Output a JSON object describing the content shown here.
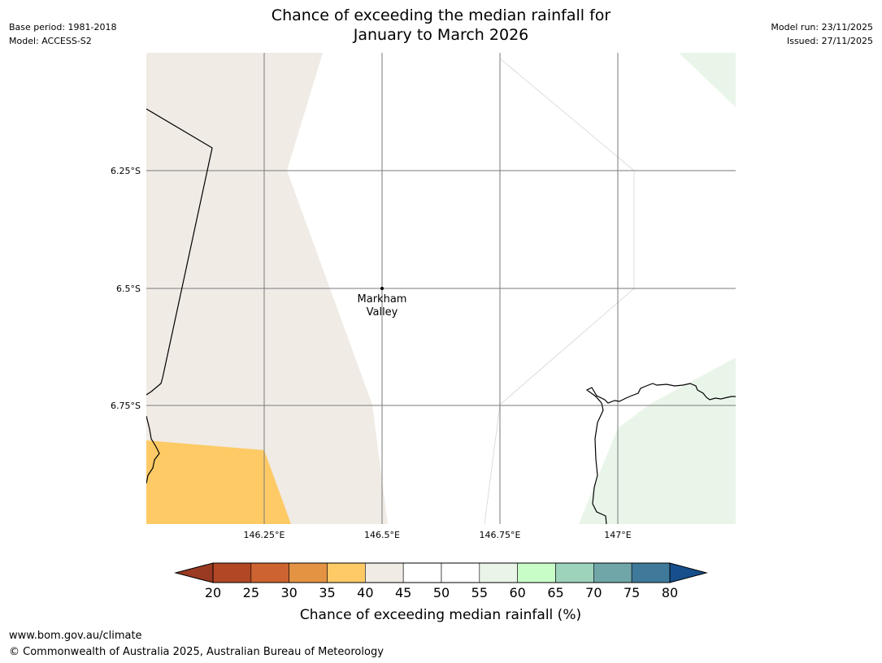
{
  "title_line1": "Chance of exceeding the median rainfall for",
  "title_line2": "January to March 2026",
  "meta_left": {
    "base_period": "Base period: 1981-2018",
    "model": "Model: ACCESS-S2"
  },
  "meta_right": {
    "model_run": "Model run: 23/11/2025",
    "issued": "Issued: 27/11/2025"
  },
  "map": {
    "lat_labels": [
      "6.25°S",
      "6.5°S",
      "6.75°S"
    ],
    "lon_labels": [
      "146.25°E",
      "146.5°E",
      "146.75°E",
      "147°E"
    ],
    "place": {
      "name_line1": "Markham",
      "name_line2": "Valley"
    },
    "colors": {
      "band_40_45": "#f0ebe5",
      "band_35_40": "#fdca65",
      "band_55_60": "#eaf5e9",
      "gridline": "#7a7a7a",
      "coastline": "#000000"
    }
  },
  "colorbar": {
    "label": "Chance of exceeding median rainfall (%)",
    "ticks": [
      "20",
      "25",
      "30",
      "35",
      "40",
      "45",
      "50",
      "55",
      "60",
      "65",
      "70",
      "75",
      "80"
    ],
    "below_color": "#9a3a22",
    "above_color": "#174f8c",
    "bins": [
      {
        "range": "20-25",
        "color": "#b24725"
      },
      {
        "range": "25-30",
        "color": "#cd6330"
      },
      {
        "range": "30-35",
        "color": "#e49343"
      },
      {
        "range": "35-40",
        "color": "#fdca65"
      },
      {
        "range": "40-45",
        "color": "#f0ebe5"
      },
      {
        "range": "45-50",
        "color": "#ffffff"
      },
      {
        "range": "50-55",
        "color": "#ffffff"
      },
      {
        "range": "55-60",
        "color": "#eaf5e9"
      },
      {
        "range": "60-65",
        "color": "#c8fdc8"
      },
      {
        "range": "65-70",
        "color": "#9dd2bb"
      },
      {
        "range": "70-75",
        "color": "#70a6a8"
      },
      {
        "range": "75-80",
        "color": "#3f7a9a"
      }
    ]
  },
  "footer": {
    "url": "www.bom.gov.au/climate",
    "copyright": "© Commonwealth of Australia 2025, Australian Bureau of Meteorology"
  }
}
